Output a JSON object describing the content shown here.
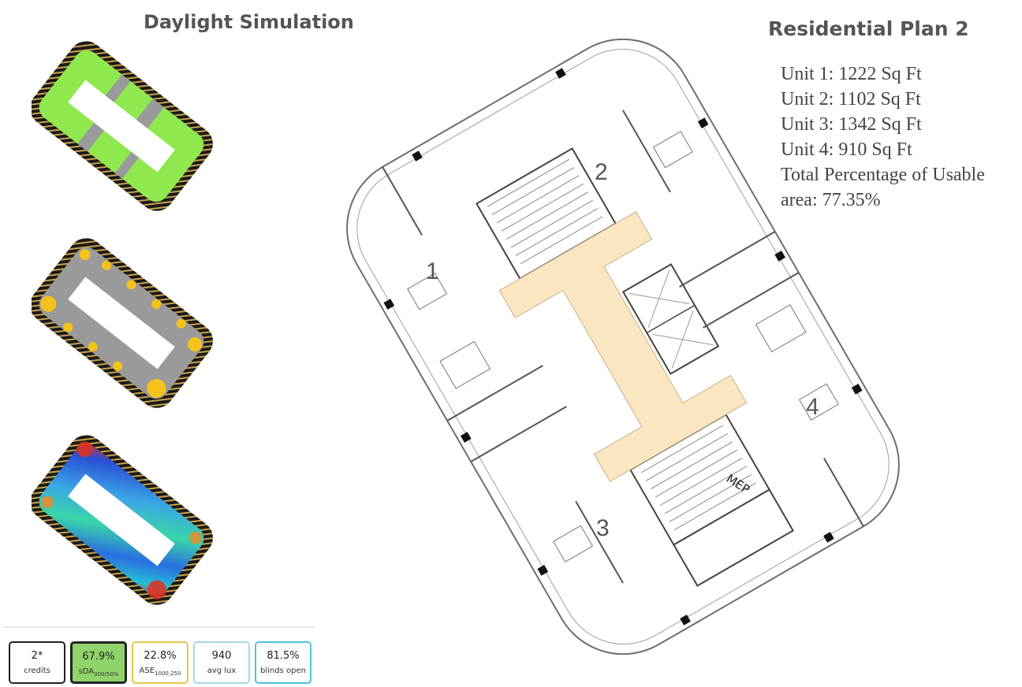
{
  "titles": {
    "simulation": "Daylight Simulation",
    "plan": "Residential Plan 2"
  },
  "units": {
    "unit1": "Unit 1: 1222 Sq Ft",
    "unit2": "Unit 2: 1102 Sq Ft",
    "unit3": "Unit 3: 1342 Sq Ft",
    "unit4": "Unit 4:  910 Sq Ft",
    "total_line1": "Total Percentage of Usable",
    "total_line2": "area: 77.35%"
  },
  "plan_labels": {
    "unit_1": "1",
    "unit_2": "2",
    "unit_3": "3",
    "unit_4": "4",
    "mep": "MEP"
  },
  "metrics": [
    {
      "value": "2*",
      "label": "credits",
      "border": "#222222",
      "fill": "#ffffff"
    },
    {
      "value": "67.9%",
      "label": "sDA",
      "sub": "300/50%",
      "border": "#222222",
      "fill": "#8fd36b"
    },
    {
      "value": "22.8%",
      "label": "ASE",
      "sub": "1000,250",
      "border": "#e8c547",
      "fill": "#ffffff"
    },
    {
      "value": "940",
      "label": "avg lux",
      "border": "#a9d7e6",
      "fill": "#ffffff"
    },
    {
      "value": "81.5%",
      "label": "blinds open",
      "border": "#4fc3dd",
      "fill": "#ffffff"
    }
  ],
  "colors": {
    "corridor": "#fbe6c2",
    "sda_green": "#8fe84e",
    "ase_yellow": "#f5c21b",
    "floor_gray": "#9a9a9a"
  }
}
